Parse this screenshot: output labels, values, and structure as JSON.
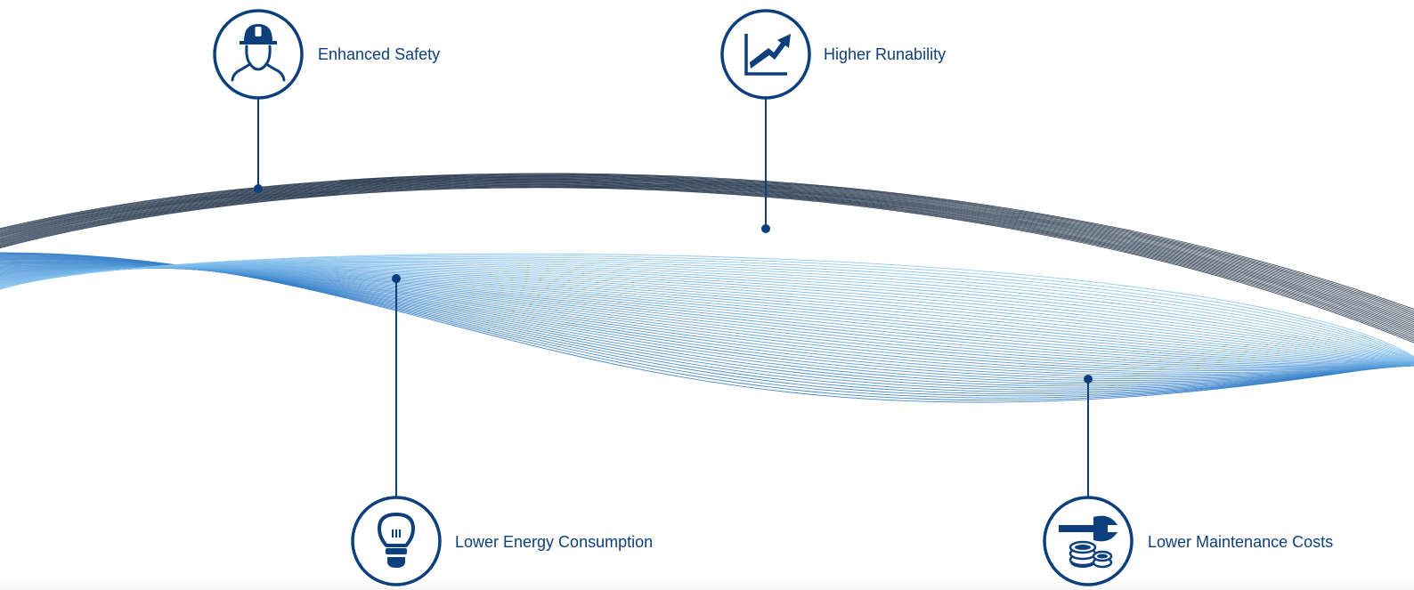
{
  "colors": {
    "primary": "#0d3f7c",
    "wave_dark": "#1d2f45",
    "wave_light_start": "#2f79c6",
    "wave_light_end": "#86c3ef",
    "background": "#ffffff"
  },
  "benefits": [
    {
      "label": "Enhanced Safety",
      "icon": "hard-hat-worker-icon"
    },
    {
      "label": "Higher Runability",
      "icon": "trending-up-chart-icon"
    },
    {
      "label": "Lower Energy Consumption",
      "icon": "light-bulb-icon"
    },
    {
      "label": "Lower Maintenance Costs",
      "icon": "wrench-coins-icon"
    }
  ]
}
